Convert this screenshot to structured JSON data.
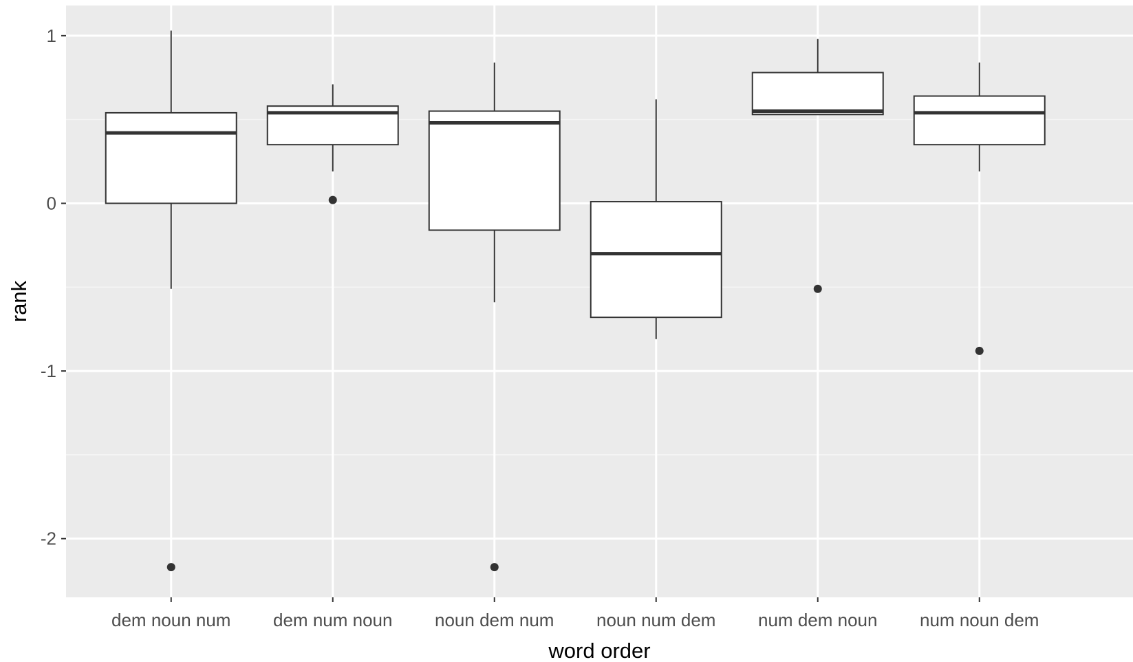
{
  "chart_data": {
    "type": "boxplot",
    "xlabel": "word order",
    "ylabel": "rank",
    "ylim": [
      -2.35,
      1.18
    ],
    "y_ticks": [
      1,
      0,
      -1,
      -2
    ],
    "y_tick_labels": [
      "1",
      "0",
      "-1",
      "-2"
    ],
    "grid": true,
    "categories": [
      "dem noun num",
      "dem num noun",
      "noun dem num",
      "noun num dem",
      "num dem noun",
      "num noun dem"
    ],
    "boxes": [
      {
        "category": "dem noun num",
        "whisker_low": -0.51,
        "q1": 0.0,
        "median": 0.42,
        "q3": 0.54,
        "whisker_high": 1.03,
        "outliers": [
          -2.17
        ]
      },
      {
        "category": "dem num noun",
        "whisker_low": 0.19,
        "q1": 0.35,
        "median": 0.54,
        "q3": 0.58,
        "whisker_high": 0.71,
        "outliers": [
          0.02
        ]
      },
      {
        "category": "noun dem num",
        "whisker_low": -0.59,
        "q1": -0.16,
        "median": 0.48,
        "q3": 0.55,
        "whisker_high": 0.84,
        "outliers": [
          -2.17
        ]
      },
      {
        "category": "noun num dem",
        "whisker_low": -0.81,
        "q1": -0.68,
        "median": -0.3,
        "q3": 0.01,
        "whisker_high": 0.62,
        "outliers": []
      },
      {
        "category": "num dem noun",
        "whisker_low": 0.53,
        "q1": 0.53,
        "median": 0.55,
        "q3": 0.78,
        "whisker_high": 0.98,
        "outliers": [
          -0.51
        ]
      },
      {
        "category": "num noun dem",
        "whisker_low": 0.19,
        "q1": 0.35,
        "median": 0.54,
        "q3": 0.64,
        "whisker_high": 0.84,
        "outliers": [
          -0.88
        ]
      }
    ],
    "colors": {
      "panel_background": "#ebebeb",
      "grid_major": "#ffffff",
      "grid_minor": "#f5f5f5",
      "box_fill": "#ffffff",
      "box_stroke": "#333333",
      "outlier": "#333333",
      "tick_mark": "#333333",
      "tick_text": "#4d4d4d",
      "title_text": "#000000"
    }
  }
}
